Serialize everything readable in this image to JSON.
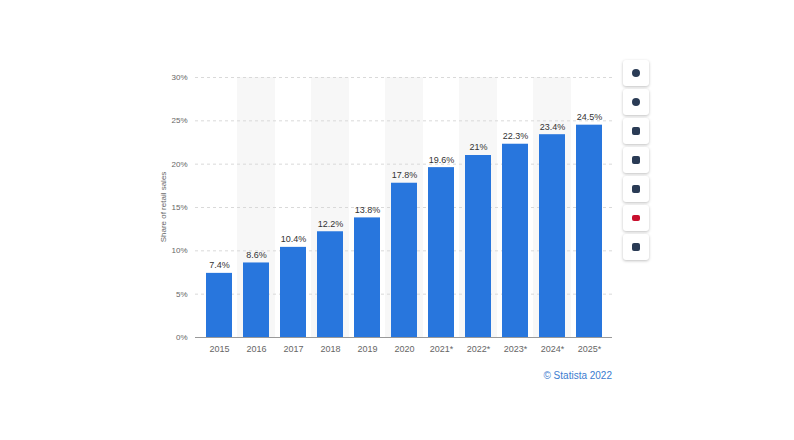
{
  "chart_data": {
    "type": "bar",
    "y_label": "Share of retail sales",
    "caption": "© Statista 2022",
    "categories": [
      "2015",
      "2016",
      "2017",
      "2018",
      "2019",
      "2020",
      "2021*",
      "2022*",
      "2023*",
      "2024*",
      "2025*"
    ],
    "values": [
      7.4,
      8.6,
      10.4,
      12.2,
      13.8,
      17.8,
      19.6,
      21,
      22.3,
      23.4,
      24.5
    ],
    "value_labels": [
      "7.4%",
      "8.6%",
      "10.4%",
      "12.2%",
      "13.8%",
      "17.8%",
      "19.6%",
      "21%",
      "22.3%",
      "23.4%",
      "24.5%"
    ],
    "color": "#2876dd",
    "ylim": [
      0,
      30
    ],
    "yticks": [
      {
        "value": 0,
        "label": "0%"
      },
      {
        "value": 5,
        "label": "5%"
      },
      {
        "value": 10,
        "label": "10%"
      },
      {
        "value": 15,
        "label": "15%"
      },
      {
        "value": 20,
        "label": "20%"
      },
      {
        "value": 25,
        "label": "25%"
      },
      {
        "value": 30,
        "label": "30%"
      }
    ],
    "grid": true,
    "data_labels": true
  }
}
